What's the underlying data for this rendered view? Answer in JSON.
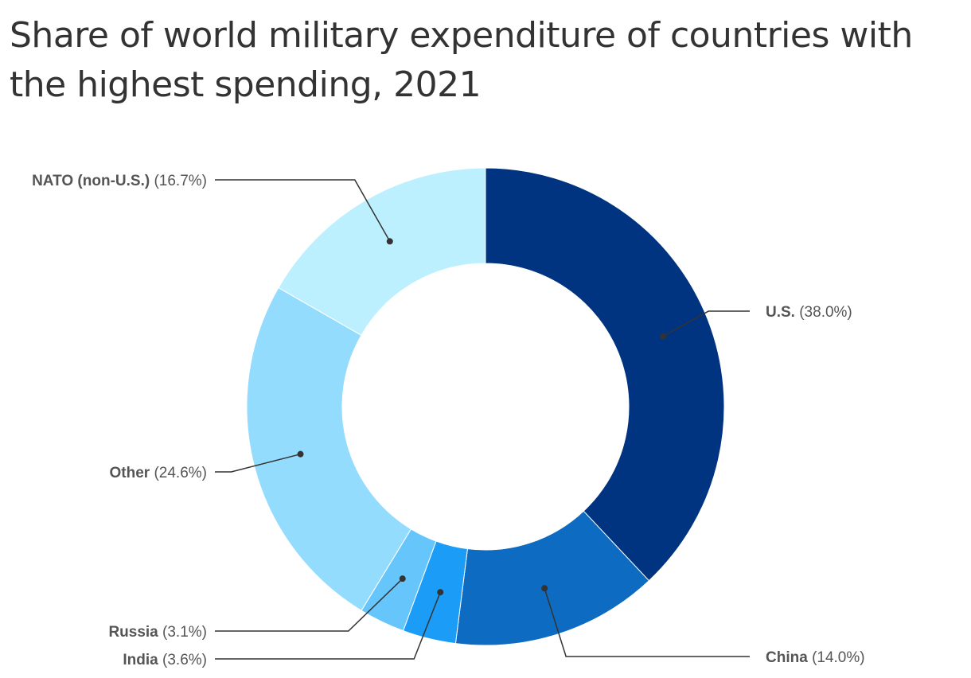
{
  "chart_data": {
    "type": "pie",
    "variant": "donut",
    "title": "Share of world military expenditure of countries with the highest spending, 2021",
    "unit": "%",
    "slices": [
      {
        "label": "U.S.",
        "value": 38.0,
        "value_label": "(38.0%)",
        "color": "#003380"
      },
      {
        "label": "China",
        "value": 14.0,
        "value_label": "(14.0%)",
        "color": "#0d6bc2"
      },
      {
        "label": "India",
        "value": 3.6,
        "value_label": "(3.6%)",
        "color": "#1b9cf7"
      },
      {
        "label": "Russia",
        "value": 3.1,
        "value_label": "(3.1%)",
        "color": "#66c6fc"
      },
      {
        "label": "Other",
        "value": 24.6,
        "value_label": "(24.6%)",
        "color": "#94dcfd"
      },
      {
        "label": "NATO (non-U.S.)",
        "value": 16.7,
        "value_label": "(16.7%)",
        "color": "#bcf0fe"
      }
    ],
    "start_angle_deg": 0,
    "direction": "clockwise",
    "legend": "none",
    "labels": "outside with leader lines"
  }
}
